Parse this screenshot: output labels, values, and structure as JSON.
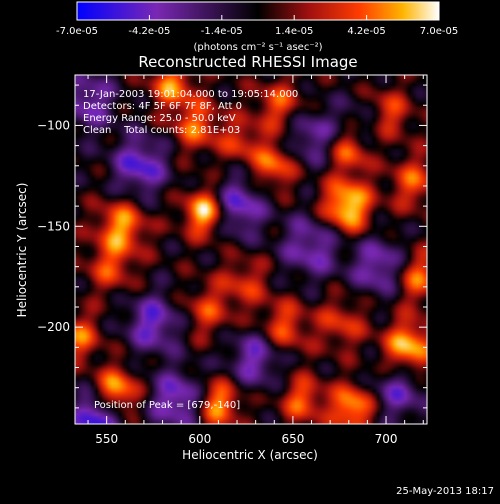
{
  "colorbar": {
    "tick_labels": [
      "-7.0e-05",
      "-4.2e-05",
      "-1.4e-05",
      "1.4e-05",
      "4.2e-05",
      "7.0e-05"
    ],
    "tick_values": [
      -7e-05,
      -4.2e-05,
      -1.4e-05,
      1.4e-05,
      4.2e-05,
      7e-05
    ],
    "units_label": "(photons cm⁻² s⁻¹ asec⁻²)",
    "range": [
      -7e-05,
      7e-05
    ],
    "colors": [
      "#0000ff",
      "#7a28b4",
      "#000000",
      "#a01010",
      "#ff3c00",
      "#ffb400",
      "#ffffff"
    ]
  },
  "chart_data": {
    "type": "heatmap",
    "title": "Reconstructed RHESSI Image",
    "xlabel": "Heliocentric X (arcsec)",
    "ylabel": "Heliocentric Y (arcsec)",
    "xlim": [
      533,
      722
    ],
    "ylim": [
      -248,
      -75
    ],
    "xticks": [
      550,
      600,
      650,
      700
    ],
    "yticks": [
      -100,
      -150,
      -200
    ],
    "xtick_labels": [
      "550",
      "600",
      "650",
      "700"
    ],
    "ytick_labels": [
      "−100",
      "−150",
      "−200"
    ],
    "colorscale": "rhessi_red_blue",
    "value_range": [
      -7e-05,
      7e-05
    ],
    "peak": {
      "x": 679,
      "y": -140
    },
    "annotations": {
      "time_range": "17-Jan-2003 19:01:04.000 to 19:05:14.000",
      "detectors": "Detectors: 4F 5F 6F 7F 8F, Att 0",
      "energy": "Energy Range: 25.0 - 50.0 keV",
      "method": "Clean    Total counts: 2.81E+03",
      "peak_text": "Position of Peak = [679,-140]"
    },
    "blobs": [
      {
        "x": 679,
        "y": -140,
        "v": 7e-05,
        "s": 9
      },
      {
        "x": 681,
        "y": -112,
        "v": 4.8e-05,
        "s": 8
      },
      {
        "x": 700,
        "y": -95,
        "v": 4.6e-05,
        "s": 9
      },
      {
        "x": 603,
        "y": -143,
        "v": 6.8e-05,
        "s": 8
      },
      {
        "x": 598,
        "y": -100,
        "v": 4.2e-05,
        "s": 9
      },
      {
        "x": 585,
        "y": -80,
        "v": 4.8e-05,
        "s": 8
      },
      {
        "x": 558,
        "y": -150,
        "v": 5.2e-05,
        "s": 9
      },
      {
        "x": 552,
        "y": -170,
        "v": 3.4e-05,
        "s": 9
      },
      {
        "x": 555,
        "y": -232,
        "v": 6.2e-05,
        "s": 8
      },
      {
        "x": 610,
        "y": -238,
        "v": 5.4e-05,
        "s": 8
      },
      {
        "x": 604,
        "y": -192,
        "v": 3.2e-05,
        "s": 9
      },
      {
        "x": 624,
        "y": -178,
        "v": 3e-05,
        "s": 9
      },
      {
        "x": 640,
        "y": -120,
        "v": 4.6e-05,
        "s": 8
      },
      {
        "x": 643,
        "y": -90,
        "v": 3.8e-05,
        "s": 9
      },
      {
        "x": 645,
        "y": -200,
        "v": 4e-05,
        "s": 9
      },
      {
        "x": 655,
        "y": -236,
        "v": 4.2e-05,
        "s": 8
      },
      {
        "x": 682,
        "y": -240,
        "v": 5.8e-05,
        "s": 8
      },
      {
        "x": 676,
        "y": -198,
        "v": 3.2e-05,
        "s": 9
      },
      {
        "x": 717,
        "y": -175,
        "v": 4.4e-05,
        "s": 9
      },
      {
        "x": 712,
        "y": -210,
        "v": 6.2e-05,
        "s": 9
      },
      {
        "x": 715,
        "y": -128,
        "v": 3.8e-05,
        "s": 9
      },
      {
        "x": 622,
        "y": -108,
        "v": 3e-05,
        "s": 8
      },
      {
        "x": 535,
        "y": -205,
        "v": 4.2e-05,
        "s": 8
      },
      {
        "x": 540,
        "y": -88,
        "v": -4e-05,
        "s": 10
      },
      {
        "x": 568,
        "y": -120,
        "v": -5e-05,
        "s": 10
      },
      {
        "x": 575,
        "y": -198,
        "v": -4.6e-05,
        "s": 10
      },
      {
        "x": 620,
        "y": -140,
        "v": -5e-05,
        "s": 10
      },
      {
        "x": 660,
        "y": -160,
        "v": -4e-05,
        "s": 11
      },
      {
        "x": 660,
        "y": -105,
        "v": -3.6e-05,
        "s": 10
      },
      {
        "x": 697,
        "y": -170,
        "v": -4.4e-05,
        "s": 10
      },
      {
        "x": 707,
        "y": -232,
        "v": -3.8e-05,
        "s": 10
      },
      {
        "x": 545,
        "y": -245,
        "v": -6.2e-05,
        "s": 9
      },
      {
        "x": 588,
        "y": -236,
        "v": -4.8e-05,
        "s": 10
      },
      {
        "x": 630,
        "y": -215,
        "v": -4.2e-05,
        "s": 10
      },
      {
        "x": 690,
        "y": -100,
        "v": -3.2e-05,
        "s": 10
      }
    ]
  },
  "footer": {
    "timestamp": "25-May-2013 18:17"
  }
}
